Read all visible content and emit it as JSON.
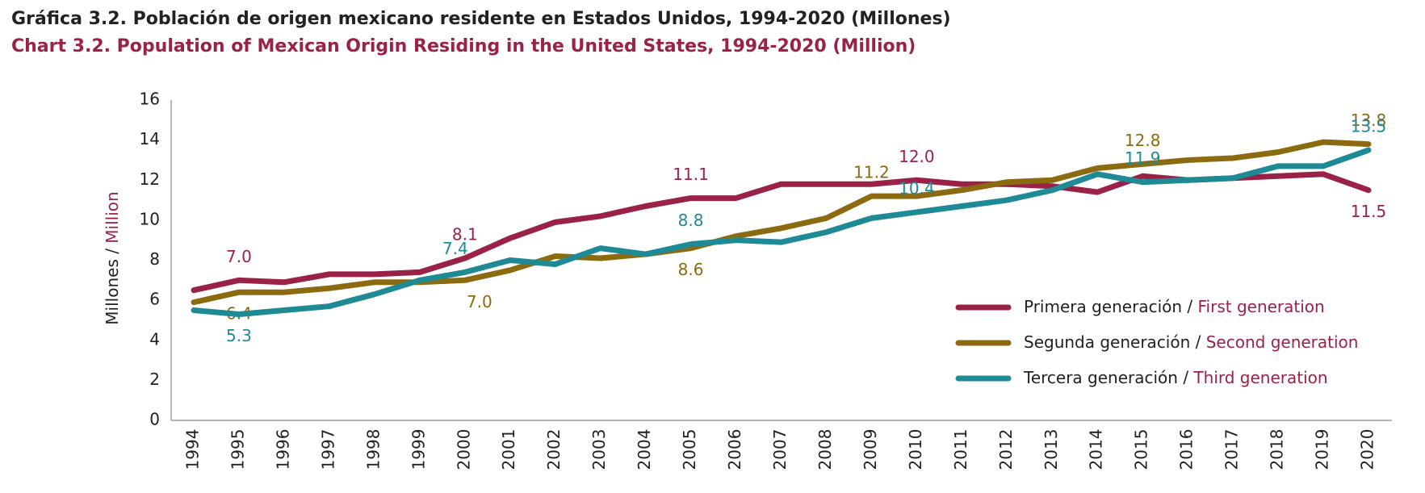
{
  "chart_data": {
    "type": "line",
    "title": "Gráfica 3.2. Población de origen mexicano residente en Estados Unidos, 1994-2020 (Millones)",
    "title_en": "Chart 3.2. Population of Mexican Origin Residing in the United States, 1994-2020 (Million)",
    "y_label": "Millones",
    "y_label_en": "Million",
    "categories": [
      "1994",
      "1995",
      "1996",
      "1997",
      "1998",
      "1999",
      "2000",
      "2001",
      "2002",
      "2003",
      "2004",
      "2005",
      "2006",
      "2007",
      "2008",
      "2009",
      "2010",
      "2011",
      "2012",
      "2013",
      "2014",
      "2015",
      "2016",
      "2017",
      "2018",
      "2019",
      "2020"
    ],
    "ylim": [
      0,
      16
    ],
    "yticks": [
      0,
      2,
      4,
      6,
      8,
      10,
      12,
      14,
      16
    ],
    "grid": false,
    "legend": "right",
    "series": [
      {
        "name": "Primera generación",
        "name_en": "First generation",
        "color": "#9b2247",
        "values": [
          6.5,
          7.0,
          6.9,
          7.3,
          7.3,
          7.4,
          8.1,
          9.1,
          9.9,
          10.2,
          10.7,
          11.1,
          11.1,
          11.8,
          11.8,
          11.8,
          12.0,
          11.8,
          11.8,
          11.7,
          11.4,
          12.2,
          12.0,
          12.1,
          12.2,
          12.3,
          11.5
        ],
        "value_labels": [
          null,
          "7.0",
          null,
          null,
          null,
          null,
          "8.1",
          null,
          null,
          null,
          null,
          "11.1",
          null,
          null,
          null,
          null,
          "12.0",
          null,
          null,
          null,
          null,
          null,
          null,
          null,
          null,
          null,
          "11.5"
        ]
      },
      {
        "name": "Segunda generación",
        "name_en": "Second generation",
        "color": "#8c6a10",
        "values": [
          5.9,
          6.4,
          6.4,
          6.6,
          6.9,
          6.9,
          7.0,
          7.5,
          8.2,
          8.1,
          8.3,
          8.6,
          9.2,
          9.6,
          10.1,
          11.2,
          11.2,
          11.5,
          11.9,
          12.0,
          12.6,
          12.8,
          13.0,
          13.1,
          13.4,
          13.9,
          13.8
        ],
        "value_labels": [
          null,
          "6.4",
          null,
          null,
          null,
          null,
          "7.0",
          null,
          null,
          null,
          null,
          "8.6",
          null,
          null,
          null,
          "11.2",
          null,
          null,
          null,
          null,
          null,
          "12.8",
          null,
          null,
          null,
          null,
          "13.8"
        ]
      },
      {
        "name": "Tercera generación",
        "name_en": "Third generation",
        "color": "#1e8a96",
        "values": [
          5.5,
          5.3,
          5.5,
          5.7,
          6.3,
          7.0,
          7.4,
          8.0,
          7.8,
          8.6,
          8.3,
          8.8,
          9.0,
          8.9,
          9.4,
          10.1,
          10.4,
          10.7,
          11.0,
          11.5,
          12.3,
          11.9,
          12.0,
          12.1,
          12.7,
          12.7,
          13.5
        ],
        "value_labels": [
          null,
          "5.3",
          null,
          null,
          null,
          null,
          "7.4",
          null,
          null,
          null,
          null,
          "8.8",
          null,
          null,
          null,
          null,
          "10.4",
          null,
          null,
          null,
          null,
          "11.9",
          null,
          null,
          null,
          null,
          "13.5"
        ]
      }
    ]
  }
}
